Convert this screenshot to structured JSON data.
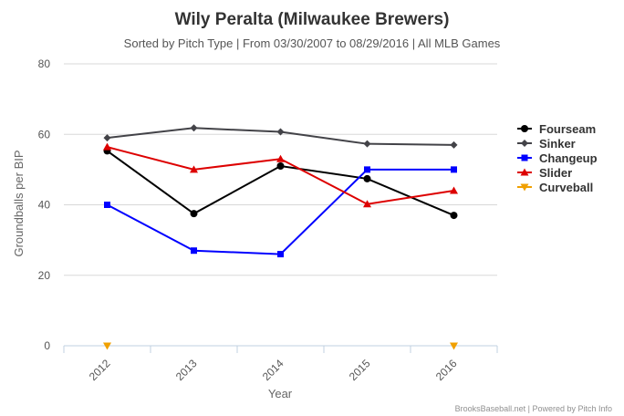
{
  "chart_data": {
    "type": "line",
    "title": "Wily Peralta (Milwaukee Brewers)",
    "subtitle": "Sorted by Pitch Type | From 03/30/2007 to 08/29/2016 | All MLB Games",
    "xlabel": "Year",
    "ylabel": "Groundballs per BIP",
    "categories": [
      "2012",
      "2013",
      "2014",
      "2015",
      "2016"
    ],
    "ylim": [
      0,
      80
    ],
    "yticks": [
      0,
      20,
      40,
      60,
      80
    ],
    "grid": true,
    "legend_position": "right",
    "series": [
      {
        "name": "Fourseam",
        "color": "#000000",
        "marker": "circle",
        "values": [
          55.3,
          37.5,
          51.0,
          47.4,
          37.0
        ]
      },
      {
        "name": "Sinker",
        "color": "#434348",
        "marker": "diamond",
        "values": [
          59.0,
          61.8,
          60.7,
          57.3,
          57.0
        ]
      },
      {
        "name": "Changeup",
        "color": "#0000ff",
        "marker": "square",
        "values": [
          40.0,
          27.0,
          26.0,
          50.0,
          50.0
        ]
      },
      {
        "name": "Slider",
        "color": "#dd0000",
        "marker": "triangle",
        "values": [
          56.4,
          50.0,
          53.0,
          40.2,
          44.0
        ]
      },
      {
        "name": "Curveball",
        "color": "#f0a000",
        "marker": "triangle-down",
        "values": [
          0,
          null,
          null,
          null,
          0
        ]
      }
    ]
  },
  "credits": "BrooksBaseball.net | Powered by Pitch Info"
}
